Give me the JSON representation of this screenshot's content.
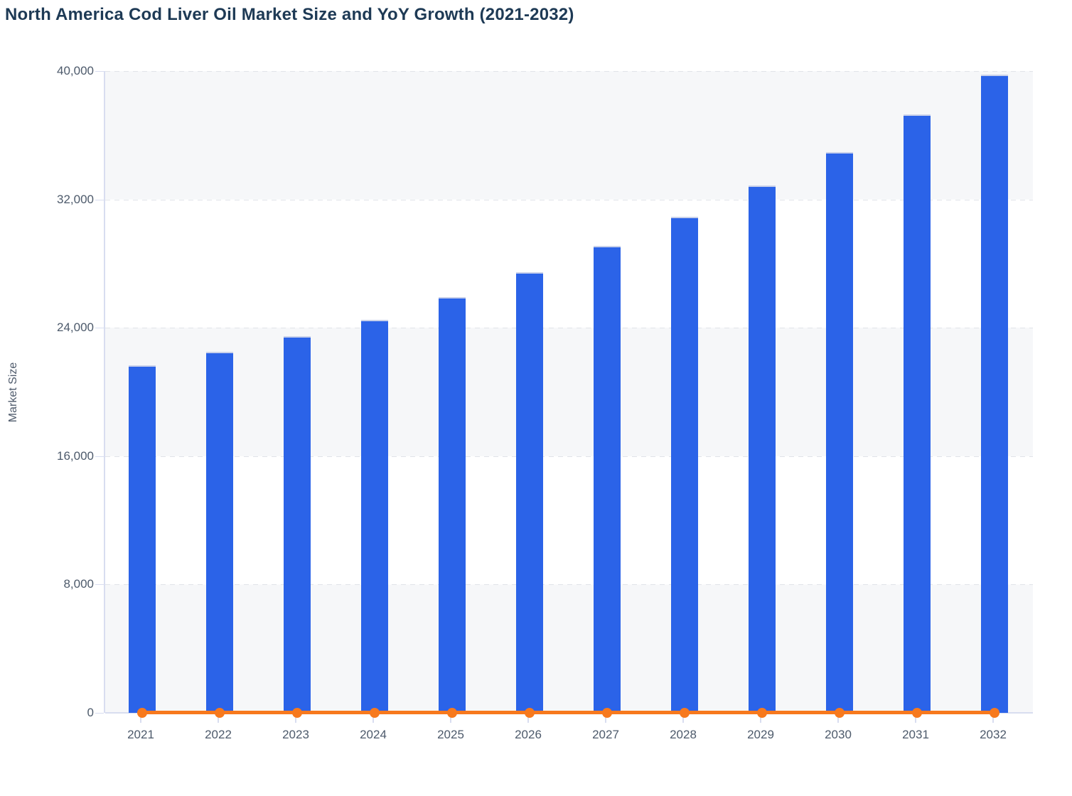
{
  "title": "North America Cod Liver Oil Market Size and YoY Growth (2021-2032)",
  "colors": {
    "bar_blue": "#2b63e8",
    "line_orange": "#f7791d",
    "title_text": "#1e3a55",
    "axis_text": "#4d5a6b",
    "band_gray": "#f6f7f9",
    "gridline": "#e1e3e9",
    "axis_line": "#d8ddf0"
  },
  "chart_data": {
    "type": "bar",
    "title": "North America Cod Liver Oil Market Size and YoY Growth (2021-2032)",
    "xlabel": "",
    "ylabel": "Market Size",
    "ylim": [
      0,
      40000
    ],
    "yticks": [
      0,
      8000,
      16000,
      24000,
      32000,
      40000
    ],
    "ytick_labels": [
      "0",
      "8,000",
      "16,000",
      "24,000",
      "32,000",
      "40,000"
    ],
    "grid": "dashed horizontal gridlines, alternating band fills",
    "legend": "none",
    "categories": [
      "2021",
      "2022",
      "2023",
      "2024",
      "2025",
      "2026",
      "2027",
      "2028",
      "2029",
      "2030",
      "2031",
      "2032"
    ],
    "series": [
      {
        "name": "Market Size",
        "type": "bar",
        "color": "#2b63e8",
        "values": [
          21650,
          22500,
          23500,
          24500,
          25900,
          27450,
          29100,
          30900,
          32850,
          34950,
          37300,
          39800
        ]
      },
      {
        "name": "YoY Growth",
        "type": "line",
        "color": "#f7791d",
        "values": [
          0,
          3.9,
          4.4,
          4.3,
          5.7,
          6.0,
          6.0,
          6.2,
          6.3,
          6.4,
          6.7,
          6.7
        ],
        "note": "plotted against the market-size axis, so the line renders flat at ~0 with a marker at each year"
      }
    ]
  }
}
